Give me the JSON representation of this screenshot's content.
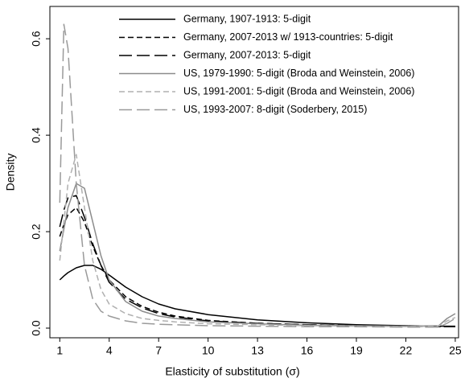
{
  "chart_data": {
    "type": "line",
    "xlabel": "Elasticity of substitution (σ)",
    "ylabel": "Density",
    "x": [
      1,
      1.25,
      1.5,
      2,
      2.5,
      3,
      3.5,
      4,
      5,
      6,
      7,
      8,
      10,
      13,
      16,
      19,
      22,
      24,
      24.5,
      25
    ],
    "series": [
      {
        "name": "Germany, 1907-1913: 5-digit",
        "color": "#000000",
        "dash": "solid",
        "values": [
          0.1,
          0.108,
          0.115,
          0.125,
          0.13,
          0.13,
          0.122,
          0.11,
          0.085,
          0.065,
          0.05,
          0.04,
          0.028,
          0.017,
          0.011,
          0.007,
          0.005,
          0.004,
          0.004,
          0.004
        ]
      },
      {
        "name": "Germany, 2007-2013 w/ 1913-countries: 5-digit",
        "color": "#000000",
        "dash": "short",
        "values": [
          0.19,
          0.215,
          0.235,
          0.25,
          0.22,
          0.17,
          0.13,
          0.1,
          0.065,
          0.045,
          0.033,
          0.025,
          0.016,
          0.01,
          0.007,
          0.005,
          0.004,
          0.003,
          0.003,
          0.003
        ]
      },
      {
        "name": "Germany, 2007-2013: 5-digit",
        "color": "#000000",
        "dash": "long",
        "values": [
          0.21,
          0.245,
          0.27,
          0.275,
          0.23,
          0.175,
          0.13,
          0.095,
          0.06,
          0.042,
          0.03,
          0.023,
          0.015,
          0.01,
          0.007,
          0.005,
          0.004,
          0.003,
          0.003,
          0.003
        ]
      },
      {
        "name": "US, 1979-1990: 5-digit (Broda and Weinstein, 2006)",
        "color": "#8c8c8c",
        "dash": "solid",
        "values": [
          0.16,
          0.205,
          0.25,
          0.3,
          0.29,
          0.22,
          0.15,
          0.1,
          0.055,
          0.035,
          0.025,
          0.02,
          0.013,
          0.009,
          0.006,
          0.005,
          0.004,
          0.005,
          0.02,
          0.03
        ]
      },
      {
        "name": "US, 1991-2001: 5-digit (Broda and Weinstein, 2006)",
        "color": "#b0b0b0",
        "dash": "short",
        "values": [
          0.14,
          0.22,
          0.3,
          0.36,
          0.25,
          0.14,
          0.08,
          0.05,
          0.03,
          0.02,
          0.016,
          0.013,
          0.009,
          0.007,
          0.005,
          0.004,
          0.003,
          0.004,
          0.015,
          0.022
        ]
      },
      {
        "name": "US, 1993-2007: 8-digit (Soderbery, 2015)",
        "color": "#9a9a9a",
        "dash": "long",
        "values": [
          0.26,
          0.63,
          0.58,
          0.3,
          0.13,
          0.06,
          0.035,
          0.025,
          0.015,
          0.01,
          0.008,
          0.007,
          0.005,
          0.004,
          0.003,
          0.003,
          0.002,
          0.002,
          0.01,
          0.02
        ]
      }
    ],
    "xlim": [
      0.4,
      25.2
    ],
    "ylim": [
      -0.02,
      0.667
    ],
    "xticks": [
      1,
      4,
      7,
      10,
      13,
      16,
      19,
      22,
      25
    ],
    "yticks": [
      {
        "value": 0,
        "label": "0.0"
      },
      0.2,
      0.4,
      0.6
    ],
    "legend": "top"
  }
}
